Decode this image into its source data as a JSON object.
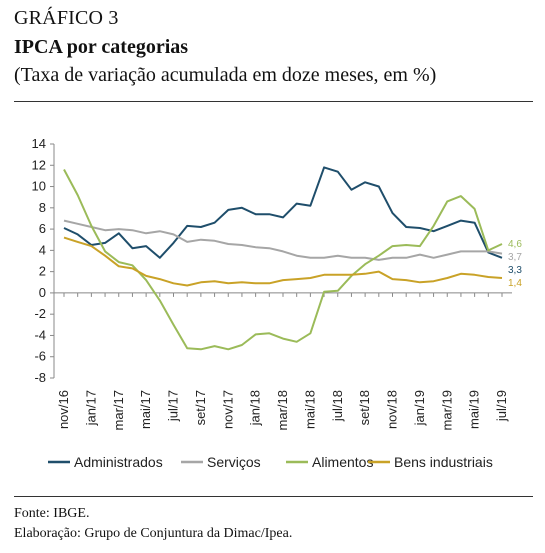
{
  "header": {
    "label": "GRÁFICO 3",
    "title": "IPCA por categorias",
    "subtitle": "(Taxa de variação acumulada em doze meses, em %)"
  },
  "footer": {
    "source": "Fonte: IBGE.",
    "credit": "Elaboração: Grupo de Conjuntura da Dimac/Ipea."
  },
  "chart_data": {
    "type": "line",
    "title": "IPCA por categorias",
    "xlabel": "",
    "ylabel": "",
    "ylim": [
      -8,
      14
    ],
    "yticks": [
      -8,
      -6,
      -4,
      -2,
      0,
      2,
      4,
      6,
      8,
      10,
      12,
      14
    ],
    "grid": false,
    "legend_position": "bottom",
    "x": [
      "nov/16",
      "dez/16",
      "jan/17",
      "fev/17",
      "mar/17",
      "abr/17",
      "mai/17",
      "jun/17",
      "jul/17",
      "ago/17",
      "set/17",
      "out/17",
      "nov/17",
      "dez/17",
      "jan/18",
      "fev/18",
      "mar/18",
      "abr/18",
      "mai/18",
      "jun/18",
      "jul/18",
      "ago/18",
      "set/18",
      "out/18",
      "nov/18",
      "dez/18",
      "jan/19",
      "fev/19",
      "mar/19",
      "abr/19",
      "mai/19",
      "jun/19",
      "jul/19"
    ],
    "tick_labels": [
      "nov/16",
      "jan/17",
      "mar/17",
      "mai/17",
      "jul/17",
      "set/17",
      "nov/17",
      "jan/18",
      "mar/18",
      "mai/18",
      "jul/18",
      "set/18",
      "nov/18",
      "jan/19",
      "mar/19",
      "mai/19",
      "jul/19"
    ],
    "series": [
      {
        "name": "Administrados",
        "color": "#1f4e6b",
        "values": [
          6.1,
          5.5,
          4.5,
          4.7,
          5.6,
          4.2,
          4.4,
          3.3,
          4.7,
          6.3,
          6.2,
          6.6,
          7.8,
          8.0,
          7.4,
          7.4,
          7.1,
          8.4,
          8.2,
          11.8,
          11.4,
          9.7,
          10.4,
          10.0,
          7.5,
          6.2,
          6.1,
          5.8,
          6.3,
          6.8,
          6.6,
          3.8,
          3.3
        ],
        "end_label": "3,3"
      },
      {
        "name": "Serviços",
        "color": "#a6a6a6",
        "values": [
          6.8,
          6.5,
          6.2,
          5.9,
          6.0,
          5.9,
          5.6,
          5.8,
          5.5,
          4.8,
          5.0,
          4.9,
          4.6,
          4.5,
          4.3,
          4.2,
          3.9,
          3.5,
          3.3,
          3.3,
          3.5,
          3.3,
          3.3,
          3.1,
          3.3,
          3.3,
          3.6,
          3.3,
          3.6,
          3.9,
          3.9,
          3.9,
          3.7
        ],
        "end_label": "3,7"
      },
      {
        "name": "Alimentos",
        "color": "#9bbb59",
        "values": [
          11.6,
          9.2,
          6.3,
          3.9,
          2.9,
          2.6,
          1.2,
          -0.7,
          -3.0,
          -5.2,
          -5.3,
          -5.0,
          -5.3,
          -4.9,
          -3.9,
          -3.8,
          -4.3,
          -4.6,
          -3.8,
          0.1,
          0.2,
          1.6,
          2.7,
          3.5,
          4.4,
          4.5,
          4.4,
          6.3,
          8.6,
          9.1,
          7.9,
          4.0,
          4.6
        ],
        "end_label": "4,6"
      },
      {
        "name": "Bens industriais",
        "color": "#c9a227",
        "values": [
          5.2,
          4.8,
          4.4,
          3.5,
          2.5,
          2.3,
          1.6,
          1.3,
          0.9,
          0.7,
          1.0,
          1.1,
          0.9,
          1.0,
          0.9,
          0.9,
          1.2,
          1.3,
          1.4,
          1.7,
          1.7,
          1.7,
          1.8,
          2.0,
          1.3,
          1.2,
          1.0,
          1.1,
          1.4,
          1.8,
          1.7,
          1.5,
          1.4
        ],
        "end_label": "1,4"
      }
    ]
  }
}
